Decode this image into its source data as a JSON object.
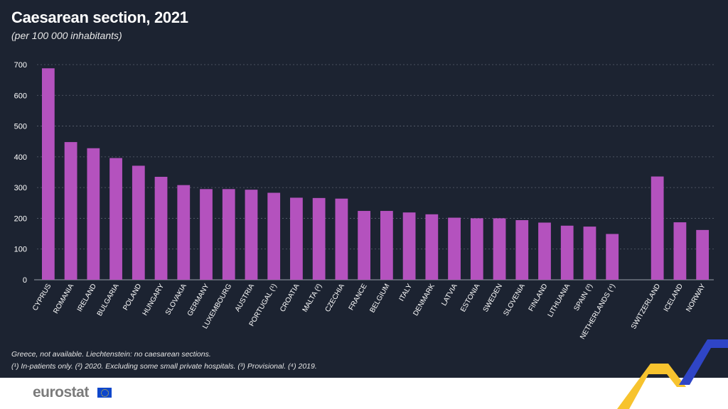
{
  "header": {
    "title": "Caesarean section, 2021",
    "subtitle": "(per 100 000 inhabitants)"
  },
  "notes": {
    "line1": "Greece, not available. Liechtenstein: no caesarean sections.",
    "line2": "(¹) In-patients only. (²) 2020. Excluding some small private hospitals. (³) Provisional. (⁴) 2019."
  },
  "footer": {
    "logo": "eurostat"
  },
  "colors": {
    "background": "#1c2331",
    "bar": "#b452be",
    "text": "#ffffff",
    "gridline": "#5a6270",
    "accent_yellow": "#f7c32e",
    "accent_blue": "#2f45c6"
  },
  "chart_data": {
    "type": "bar",
    "title": "Caesarean section, 2021",
    "subtitle": "(per 100 000 inhabitants)",
    "xlabel": "",
    "ylabel": "",
    "ylim": [
      0,
      700
    ],
    "yticks": [
      0,
      100,
      200,
      300,
      400,
      500,
      600,
      700
    ],
    "grid": true,
    "categories": [
      "CYPRUS",
      "ROMANIA",
      "IRELAND",
      "BULGARIA",
      "POLAND",
      "HUNGARY",
      "SLOVAKIA",
      "GERMANY",
      "LUXEMBOURG",
      "AUSTRIA",
      "PORTUGAL (¹)",
      "CROATIA",
      "MALTA (²)",
      "CZECHIA",
      "FRANCE",
      "BELGIUM",
      "ITALY",
      "DENMARK",
      "LATVIA",
      "ESTONIA",
      "SWEDEN",
      "SLOVENIA",
      "FINLAND",
      "LITHUANIA",
      "SPAIN (³)",
      "NETHERLANDS (⁴)",
      "",
      "SWITZERLAND",
      "ICELAND",
      "NORWAY"
    ],
    "values": [
      688,
      448,
      428,
      396,
      371,
      335,
      308,
      295,
      295,
      293,
      283,
      267,
      266,
      264,
      224,
      224,
      219,
      213,
      202,
      200,
      200,
      194,
      186,
      176,
      173,
      149,
      null,
      336,
      187,
      162
    ]
  }
}
